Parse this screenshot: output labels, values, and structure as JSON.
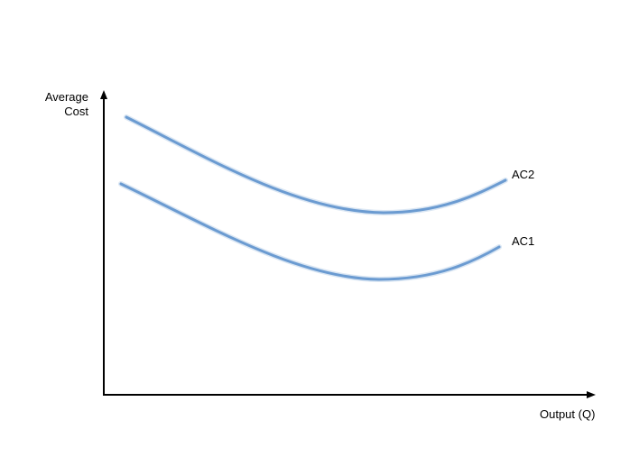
{
  "axes": {
    "y_label_line1": "Average",
    "y_label_line2": "Cost",
    "x_label": "Output (Q)"
  },
  "curves": [
    {
      "name": "AC2",
      "color": "#6b9bd1"
    },
    {
      "name": "AC1",
      "color": "#6b9bd1"
    }
  ],
  "colors": {
    "axis": "#000000",
    "curve": "#6b9bd1"
  }
}
